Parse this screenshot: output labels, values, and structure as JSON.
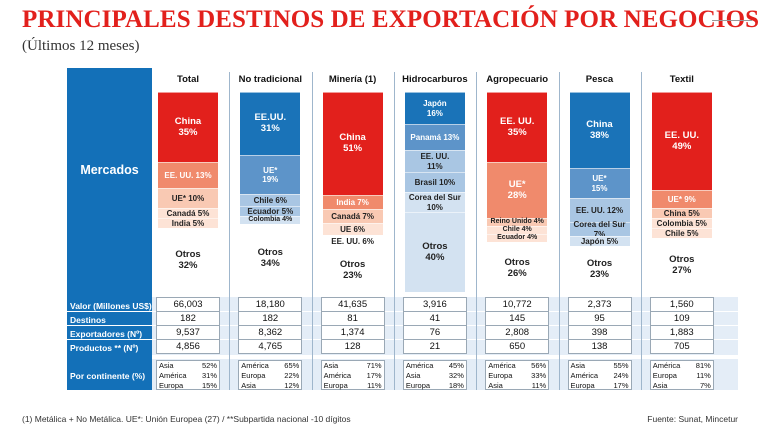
{
  "title": "PRINCIPALES DESTINOS DE EXPORTACIÓN POR NEGOCIOS",
  "subtitle": "(Últimos 12 meses)",
  "row_labels": {
    "mercados": "Mercados",
    "valor": "Valor (Millones US$)",
    "destinos": "Destinos",
    "exportadores": "Exportadores (Nº)",
    "productos": "Productos ** (Nº)",
    "continente": "Por continente (%)"
  },
  "footnote": "(1) Metálica + No Metálica. UE*: Unión Europea (27) / **Subpartida nacional -10 dígitos",
  "source": "Fuente: Sunat, Mincetur",
  "colors": {
    "title_red": "#e2201c",
    "panel_blue": "#1370b8",
    "red": "#e2201c",
    "salmon": "#f08a6c",
    "light_salmon": "#f9c9b3",
    "pale_salmon": "#fde3d6",
    "blue": "#1a73b8",
    "mid_blue": "#5d94c9",
    "light_blue": "#a9c6e3",
    "pale_blue": "#d3e2f1",
    "white": "#ffffff"
  },
  "chart_data": {
    "type": "stacked-bar",
    "categories": [
      "Total",
      "No tradicional",
      "Minería (1)",
      "Hidrocarburos",
      "Agropecuario",
      "Pesca",
      "Textil"
    ],
    "columns": [
      {
        "name": "Total",
        "segments": [
          {
            "label": "China",
            "value": 35,
            "color": "red"
          },
          {
            "label": "EE. UU.",
            "value": 13,
            "color": "salmon",
            "inline": true
          },
          {
            "label": "UE*",
            "value": 10,
            "color": "light_salmon",
            "inline": true
          },
          {
            "label": "Canadá",
            "value": 5,
            "color": "pale_salmon",
            "inline": true
          },
          {
            "label": "India",
            "value": 5,
            "color": "pale_salmon",
            "inline": true
          },
          {
            "label": "Otros",
            "value": 32,
            "color": "white"
          }
        ],
        "valor": "66,003",
        "destinos": "182",
        "exportadores": "9,537",
        "productos": "4,856",
        "continente": [
          {
            "name": "Asia",
            "pct": "52%"
          },
          {
            "name": "América",
            "pct": "31%"
          },
          {
            "name": "Europa",
            "pct": "15%"
          }
        ]
      },
      {
        "name": "No tradicional",
        "segments": [
          {
            "label": "EE.UU.",
            "value": 31,
            "color": "blue"
          },
          {
            "label": "UE*",
            "value": 19,
            "color": "mid_blue"
          },
          {
            "label": "Chile",
            "value": 6,
            "color": "light_blue",
            "inline": true
          },
          {
            "label": "Ecuador",
            "value": 5,
            "color": "light_blue",
            "inline": true
          },
          {
            "label": "Colombia",
            "value": 4,
            "color": "pale_blue",
            "inline": true
          },
          {
            "label": "Otros",
            "value": 34,
            "color": "white"
          }
        ],
        "valor": "18,180",
        "destinos": "182",
        "exportadores": "8,362",
        "productos": "4,765",
        "continente": [
          {
            "name": "América",
            "pct": "65%"
          },
          {
            "name": "Europa",
            "pct": "22%"
          },
          {
            "name": "Asia",
            "pct": "12%"
          }
        ]
      },
      {
        "name": "Minería (1)",
        "segments": [
          {
            "label": "China",
            "value": 51,
            "color": "red"
          },
          {
            "label": "India",
            "value": 7,
            "color": "salmon",
            "inline": true
          },
          {
            "label": "Canadá",
            "value": 7,
            "color": "light_salmon",
            "inline": true
          },
          {
            "label": "UE",
            "value": 6,
            "color": "pale_salmon",
            "inline": true
          },
          {
            "label": "EE. UU.",
            "value": 6,
            "color": "white",
            "inline": true
          },
          {
            "label": "Otros",
            "value": 23,
            "color": "white"
          }
        ],
        "valor": "41,635",
        "destinos": "81",
        "exportadores": "1,374",
        "productos": "128",
        "continente": [
          {
            "name": "Asia",
            "pct": "71%"
          },
          {
            "name": "América",
            "pct": "17%"
          },
          {
            "name": "Europa",
            "pct": "11%"
          }
        ]
      },
      {
        "name": "Hidrocarburos",
        "segments": [
          {
            "label": "Japón",
            "value": 16,
            "color": "blue"
          },
          {
            "label": "Panamá",
            "value": 13,
            "color": "mid_blue",
            "inline": true
          },
          {
            "label": "EE. UU.",
            "value": 11,
            "color": "light_blue"
          },
          {
            "label": "Brasil",
            "value": 10,
            "color": "light_blue",
            "inline": true
          },
          {
            "label": "Corea del Sur",
            "value": 10,
            "color": "pale_blue"
          },
          {
            "label": "Otros",
            "value": 40,
            "color": "pale_blue"
          }
        ],
        "valor": "3,916",
        "destinos": "41",
        "exportadores": "76",
        "productos": "21",
        "continente": [
          {
            "name": "América",
            "pct": "45%"
          },
          {
            "name": "Asia",
            "pct": "32%"
          },
          {
            "name": "Europa",
            "pct": "18%"
          }
        ]
      },
      {
        "name": "Agropecuario",
        "segments": [
          {
            "label": "EE. UU.",
            "value": 35,
            "color": "red"
          },
          {
            "label": "UE*",
            "value": 28,
            "color": "salmon"
          },
          {
            "label": "Reino Unido",
            "value": 4,
            "color": "light_salmon",
            "inline": true
          },
          {
            "label": "Chile",
            "value": 4,
            "color": "pale_salmon",
            "inline": true
          },
          {
            "label": "Ecuador",
            "value": 4,
            "color": "pale_salmon",
            "inline": true
          },
          {
            "label": "Otros",
            "value": 26,
            "color": "white"
          }
        ],
        "valor": "10,772",
        "destinos": "145",
        "exportadores": "2,808",
        "productos": "650",
        "continente": [
          {
            "name": "América",
            "pct": "56%"
          },
          {
            "name": "Europa",
            "pct": "33%"
          },
          {
            "name": "Asia",
            "pct": "11%"
          }
        ]
      },
      {
        "name": "Pesca",
        "segments": [
          {
            "label": "China",
            "value": 38,
            "color": "blue"
          },
          {
            "label": "UE*",
            "value": 15,
            "color": "mid_blue"
          },
          {
            "label": "EE. UU.",
            "value": 12,
            "color": "light_blue",
            "inline": true
          },
          {
            "label": "Corea del Sur",
            "value": 7,
            "color": "light_blue",
            "inline": true
          },
          {
            "label": "Japón",
            "value": 5,
            "color": "pale_blue",
            "inline": true
          },
          {
            "label": "Otros",
            "value": 23,
            "color": "white"
          }
        ],
        "valor": "2,373",
        "destinos": "95",
        "exportadores": "398",
        "productos": "138",
        "continente": [
          {
            "name": "Asia",
            "pct": "55%"
          },
          {
            "name": "América",
            "pct": "24%"
          },
          {
            "name": "Europa",
            "pct": "17%"
          }
        ]
      },
      {
        "name": "Textil",
        "segments": [
          {
            "label": "EE. UU.",
            "value": 49,
            "color": "red"
          },
          {
            "label": "UE*",
            "value": 9,
            "color": "salmon",
            "inline": true
          },
          {
            "label": "China",
            "value": 5,
            "color": "light_salmon",
            "inline": true
          },
          {
            "label": "Colombia",
            "value": 5,
            "color": "pale_salmon",
            "inline": true
          },
          {
            "label": "Chile",
            "value": 5,
            "color": "pale_salmon",
            "inline": true
          },
          {
            "label": "Otros",
            "value": 27,
            "color": "white"
          }
        ],
        "valor": "1,560",
        "destinos": "109",
        "exportadores": "1,883",
        "productos": "705",
        "continente": [
          {
            "name": "América",
            "pct": "81%"
          },
          {
            "name": "Europa",
            "pct": "11%"
          },
          {
            "name": "Asia",
            "pct": "7%"
          }
        ]
      }
    ]
  }
}
